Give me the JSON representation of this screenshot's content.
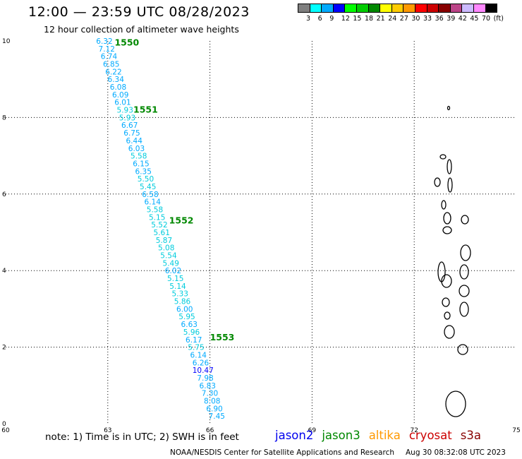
{
  "header": {
    "title": "12:00 — 23:59 UTC 08/28/2023",
    "subtitle": "12 hour collection of altimeter wave heights"
  },
  "colorbar": {
    "colors": [
      "#7f7f7f",
      "#00ffff",
      "#00aaff",
      "#0000ff",
      "#00ff00",
      "#00cc00",
      "#008800",
      "#ffff00",
      "#ffcc00",
      "#ff9900",
      "#ff0000",
      "#cc0000",
      "#880000",
      "#bb4488",
      "#ccbbff",
      "#ff88ff",
      "#000000"
    ],
    "labels": [
      "3",
      "6",
      "9",
      "12",
      "15",
      "18",
      "21",
      "24",
      "27",
      "30",
      "33",
      "36",
      "39",
      "42",
      "45",
      "70",
      "(ft)"
    ]
  },
  "chart_data": {
    "type": "scatter",
    "xlim": [
      60,
      75
    ],
    "ylim": [
      0,
      10
    ],
    "x_ticks": [
      "60",
      "63",
      "66",
      "69",
      "72",
      "75"
    ],
    "y_ticks": [
      "0",
      "2",
      "4",
      "6",
      "8",
      "10"
    ],
    "grid": true,
    "track": {
      "start": {
        "lon": 62.9,
        "lat": 10.0
      },
      "end": {
        "lon": 66.2,
        "lat": 0.2
      },
      "values": [
        "6.32",
        "7.12",
        "6.74",
        "6.85",
        "6.22",
        "6.34",
        "6.08",
        "6.09",
        "6.01",
        "5.93",
        "5.93",
        "6.67",
        "6.75",
        "6.44",
        "6.03",
        "5.58",
        "6.15",
        "6.35",
        "5.50",
        "5.45",
        "6.58",
        "6.14",
        "5.58",
        "5.15",
        "5.52",
        "5.61",
        "5.87",
        "5.08",
        "5.54",
        "5.49",
        "6.02",
        "5.15",
        "5.14",
        "5.33",
        "5.86",
        "6.00",
        "5.95",
        "6.63",
        "5.96",
        "6.17",
        "5.75",
        "6.14",
        "6.26",
        "10.47",
        "7.98",
        "6.83",
        "7.30",
        "8.08",
        "6.90",
        "7.45"
      ],
      "colors": [
        "#00aaff",
        "#00aaff",
        "#00aaff",
        "#00aaff",
        "#00aaff",
        "#00aaff",
        "#00aaff",
        "#00aaff",
        "#00aaff",
        "#00ccdd",
        "#00ccdd",
        "#00aaff",
        "#00aaff",
        "#00aaff",
        "#00aaff",
        "#00ccdd",
        "#00aaff",
        "#00aaff",
        "#00ccdd",
        "#00ccdd",
        "#00aaff",
        "#00aaff",
        "#00ccdd",
        "#00ccdd",
        "#00ccdd",
        "#00ccdd",
        "#00ccdd",
        "#00ccdd",
        "#00ccdd",
        "#00ccdd",
        "#00aaff",
        "#00ccdd",
        "#00ccdd",
        "#00ccdd",
        "#00ccdd",
        "#00aaff",
        "#00ccdd",
        "#00aaff",
        "#00ccdd",
        "#00aaff",
        "#00ccdd",
        "#00aaff",
        "#00aaff",
        "#0000ff",
        "#00aaff",
        "#00aaff",
        "#00aaff",
        "#00aaff",
        "#00aaff",
        "#00aaff"
      ]
    },
    "time_labels": [
      {
        "text": "1550",
        "lon": 63.2,
        "lat": 9.95
      },
      {
        "text": "1551",
        "lon": 63.75,
        "lat": 8.2
      },
      {
        "text": "1552",
        "lon": 64.8,
        "lat": 5.3
      },
      {
        "text": "1553",
        "lon": 66.0,
        "lat": 2.25
      }
    ]
  },
  "note": "note: 1) Time is in UTC; 2) SWH is in feet",
  "legend": [
    {
      "name": "jason2",
      "color": "#0000ee"
    },
    {
      "name": "jason3",
      "color": "#008800"
    },
    {
      "name": "altika",
      "color": "#ff9900"
    },
    {
      "name": "cryosat",
      "color": "#cc0000"
    },
    {
      "name": "s3a",
      "color": "#880000"
    }
  ],
  "footer": {
    "credit": "NOAA/NESDIS Center for Satellite Applications and Research",
    "timestamp": "Aug 30 08:32:08 UTC 2023"
  }
}
